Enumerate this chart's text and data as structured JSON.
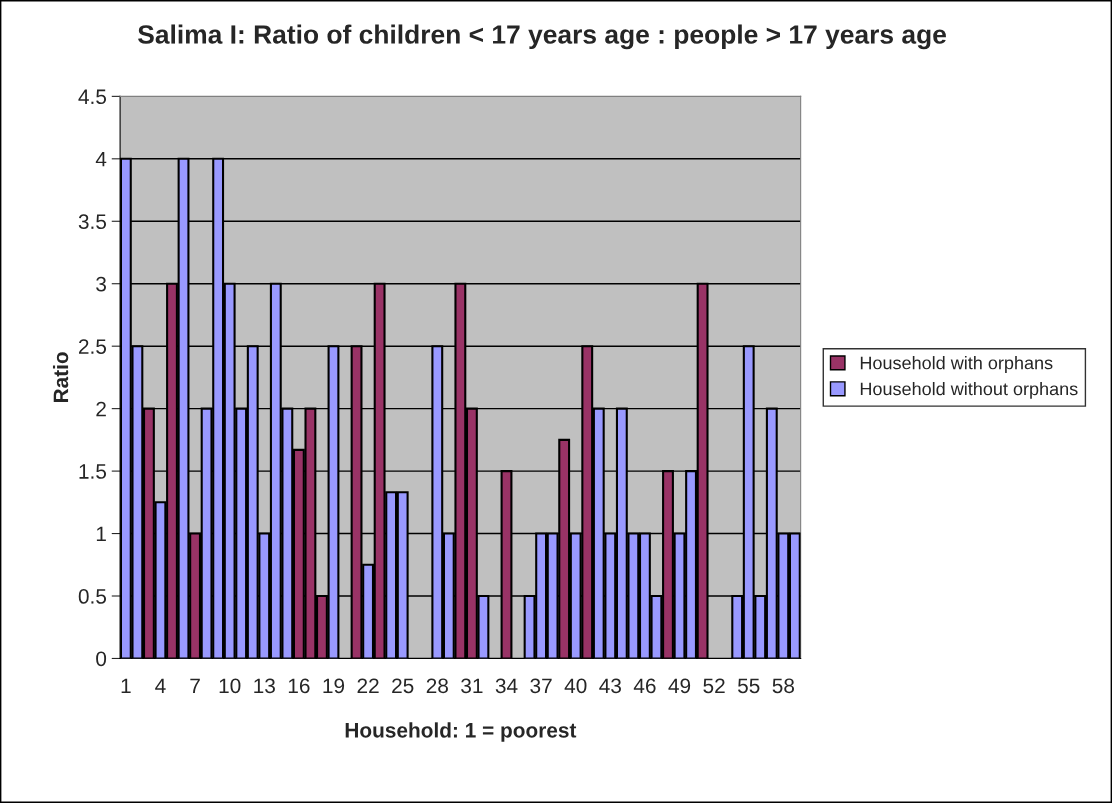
{
  "chart_data": {
    "type": "bar",
    "title": "Salima I: Ratio of children < 17 years age : people > 17 years age",
    "xlabel": "Household: 1 = poorest",
    "ylabel": "Ratio",
    "categories": [
      "1",
      null,
      null,
      "4",
      null,
      null,
      "7",
      null,
      null,
      "10",
      null,
      null,
      "13",
      null,
      null,
      "16",
      null,
      null,
      "19",
      null,
      null,
      "22",
      null,
      null,
      "25",
      null,
      null,
      "28",
      null,
      null,
      "31",
      null,
      null,
      "34",
      null,
      null,
      "37",
      null,
      null,
      "40",
      null,
      null,
      "43",
      null,
      null,
      "46",
      null,
      null,
      "49",
      null,
      null,
      "52",
      null,
      null,
      "55",
      null,
      null,
      "58",
      null
    ],
    "series": [
      {
        "name": "Household with orphans",
        "color": "#993366",
        "values": [
          null,
          null,
          2,
          null,
          3,
          null,
          1,
          null,
          null,
          null,
          null,
          null,
          null,
          null,
          null,
          1.67,
          2,
          0.5,
          null,
          null,
          2.5,
          null,
          3,
          null,
          null,
          null,
          null,
          null,
          null,
          3,
          2,
          null,
          null,
          1.5,
          null,
          null,
          null,
          null,
          1.75,
          null,
          2.5,
          null,
          null,
          null,
          null,
          null,
          null,
          1.5,
          null,
          null,
          3,
          null,
          null,
          null,
          null,
          null,
          null,
          null,
          null
        ]
      },
      {
        "name": "Household without orphans",
        "color": "#9999ff",
        "values": [
          4,
          2.5,
          null,
          1.25,
          null,
          4,
          null,
          2,
          4,
          3,
          2,
          2.5,
          1,
          3,
          2,
          null,
          null,
          null,
          2.5,
          null,
          null,
          0.75,
          null,
          1.33,
          1.33,
          null,
          null,
          2.5,
          1,
          null,
          null,
          0.5,
          null,
          null,
          null,
          0.5,
          1,
          1,
          null,
          1,
          null,
          2,
          1,
          2,
          1,
          1,
          0.5,
          null,
          1,
          1.5,
          null,
          null,
          null,
          0.5,
          2.5,
          0.5,
          2,
          1,
          1
        ]
      }
    ],
    "ylim": [
      0,
      4.5
    ],
    "yticks": [
      0,
      0.5,
      1,
      1.5,
      2,
      2.5,
      3,
      3.5,
      4,
      4.5
    ],
    "grid": "y",
    "legend": "right"
  }
}
